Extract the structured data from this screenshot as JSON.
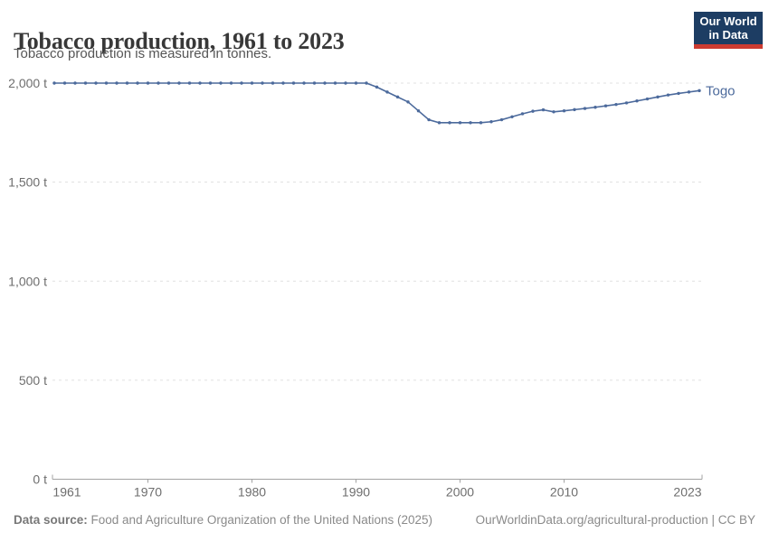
{
  "header": {
    "title": "Tobacco production, 1961 to 2023",
    "subtitle": "Tobacco production is measured in tonnes.",
    "logo": {
      "line1": "Our World",
      "line2": "in Data",
      "bg": "#1d3d63",
      "accent": "#cc3b31"
    }
  },
  "chart_data": {
    "type": "line",
    "title": "Tobacco production, 1961 to 2023",
    "ylabel": "",
    "unit": "t",
    "xlim": [
      1961,
      2023
    ],
    "ylim": [
      0,
      2000
    ],
    "grid": "horizontal-dashed",
    "legend_position": "end-of-line-label",
    "x_ticks": [
      1961,
      1970,
      1980,
      1990,
      2000,
      2010,
      2023
    ],
    "y_ticks": [
      0,
      500,
      1000,
      1500,
      2000
    ],
    "y_tick_labels": [
      "0 t",
      "500 t",
      "1,000 t",
      "1,500 t",
      "2,000 t"
    ],
    "years": [
      1961,
      1962,
      1963,
      1964,
      1965,
      1966,
      1967,
      1968,
      1969,
      1970,
      1971,
      1972,
      1973,
      1974,
      1975,
      1976,
      1977,
      1978,
      1979,
      1980,
      1981,
      1982,
      1983,
      1984,
      1985,
      1986,
      1987,
      1988,
      1989,
      1990,
      1991,
      1992,
      1993,
      1994,
      1995,
      1996,
      1997,
      1998,
      1999,
      2000,
      2001,
      2002,
      2003,
      2004,
      2005,
      2006,
      2007,
      2008,
      2009,
      2010,
      2011,
      2012,
      2013,
      2014,
      2015,
      2016,
      2017,
      2018,
      2019,
      2020,
      2021,
      2022,
      2023
    ],
    "series": [
      {
        "name": "Togo",
        "color": "#4c6a9c",
        "values": [
          2000,
          2000,
          2000,
          2000,
          2000,
          2000,
          2000,
          2000,
          2000,
          2000,
          2000,
          2000,
          2000,
          2000,
          2000,
          2000,
          2000,
          2000,
          2000,
          2000,
          2000,
          2000,
          2000,
          2000,
          2000,
          2000,
          2000,
          2000,
          2000,
          2000,
          2000,
          1980,
          1955,
          1930,
          1905,
          1860,
          1815,
          1800,
          1800,
          1800,
          1800,
          1800,
          1805,
          1815,
          1830,
          1845,
          1858,
          1865,
          1855,
          1860,
          1866,
          1872,
          1878,
          1885,
          1892,
          1900,
          1910,
          1920,
          1930,
          1940,
          1948,
          1955,
          1962
        ]
      }
    ]
  },
  "colors": {
    "grid": "#e0e0e0",
    "axis": "#a3a3a3",
    "tick_label": "#6e6e6e"
  },
  "footer": {
    "source_label": "Data source:",
    "source_text": " Food and Agriculture Organization of the United Nations (2025)",
    "link_text": "OurWorldinData.org/agricultural-production | CC BY"
  }
}
